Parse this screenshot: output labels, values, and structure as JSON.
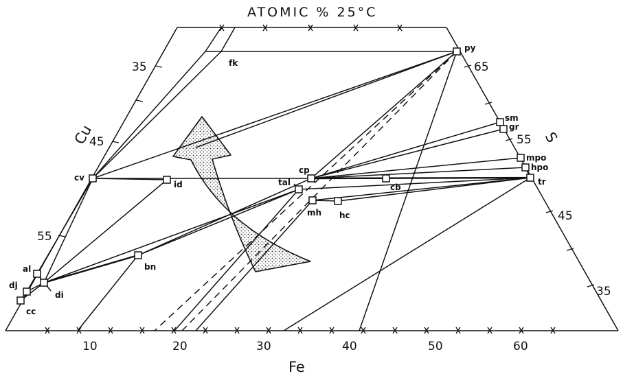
{
  "diagram": {
    "title": "ATOMIC % 25°C",
    "axes": {
      "fe": {
        "label": "Fe",
        "ticks": [
          "10",
          "20",
          "30",
          "40",
          "50",
          "60"
        ]
      },
      "cu": {
        "label": "Cu",
        "ticks": [
          "35",
          "45",
          "55"
        ]
      },
      "s": {
        "label": "S",
        "ticks": [
          "65",
          "55",
          "45",
          "35"
        ]
      }
    },
    "phases": [
      {
        "id": "py",
        "label": "py"
      },
      {
        "id": "fk",
        "label": "fk"
      },
      {
        "id": "sm",
        "label": "sm"
      },
      {
        "id": "gr",
        "label": "gr"
      },
      {
        "id": "mpo",
        "label": "mpo"
      },
      {
        "id": "hpo",
        "label": "hpo"
      },
      {
        "id": "tr",
        "label": "tr"
      },
      {
        "id": "cv",
        "label": "cv"
      },
      {
        "id": "id",
        "label": "id"
      },
      {
        "id": "cp",
        "label": "cp"
      },
      {
        "id": "tal",
        "label": "tal"
      },
      {
        "id": "cb",
        "label": "cb"
      },
      {
        "id": "mh",
        "label": "mh"
      },
      {
        "id": "hc",
        "label": "hc"
      },
      {
        "id": "bn",
        "label": "bn"
      },
      {
        "id": "al",
        "label": "al"
      },
      {
        "id": "dj",
        "label": "dj"
      },
      {
        "id": "di",
        "label": "di"
      },
      {
        "id": "cc",
        "label": "cc"
      }
    ]
  }
}
